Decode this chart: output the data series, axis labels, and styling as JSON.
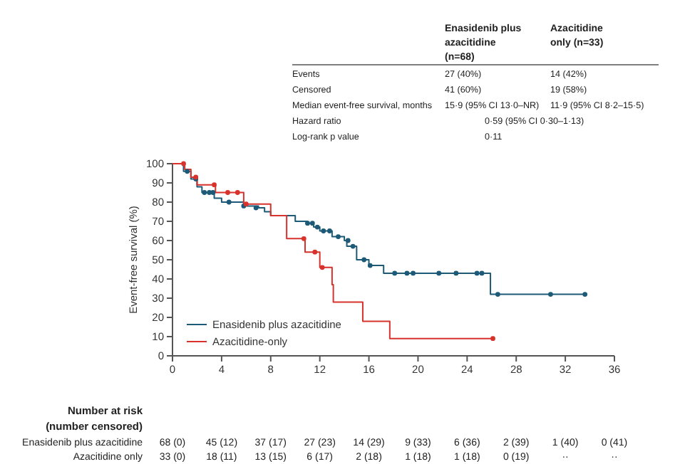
{
  "chart_data": [
    {
      "type": "other",
      "annotations": [
        "Enasidenib plus azacitidine (n=68)",
        "Azacitidine only (n=33)",
        "Events",
        "27 (40%)",
        "14 (42%)",
        "Censored",
        "41 (60%)",
        "19 (58%)",
        "Median event-free survival, months",
        "15·9 (95% CI 13·0–NR)",
        "11·9 (95% CI 8·2–15·5)",
        "Hazard ratio",
        "0·59 (95% CI 0·30–1·13)",
        "Log-rank p value",
        "0·11"
      ]
    },
    {
      "type": "step",
      "ylabel": "Event-free survival (%)",
      "xlim": [
        0,
        36
      ],
      "xticks": [
        0,
        4,
        8,
        12,
        16,
        20,
        24,
        28,
        32,
        36
      ],
      "ylim": [
        0,
        100
      ],
      "yticks": [
        0,
        10,
        20,
        30,
        40,
        50,
        60,
        70,
        80,
        90,
        100
      ],
      "grid": false,
      "legend": "bottom left",
      "series": [
        {
          "name": "Enasidenib plus azacitidine",
          "color": "#1d5a78",
          "x": [
            0,
            0.9,
            1.5,
            2,
            2.4,
            3.4,
            4,
            5.8,
            7,
            7.5,
            8,
            10,
            11,
            11.5,
            12,
            13,
            14,
            14.2,
            15,
            16,
            17.2,
            25.9,
            33.6
          ],
          "values": [
            100,
            96,
            92,
            88,
            85,
            82,
            80,
            78,
            77,
            75,
            73,
            70,
            69,
            67,
            65,
            62,
            60,
            57,
            50,
            47,
            43,
            32,
            32
          ]
        },
        {
          "name": "Azacitidine-only",
          "color": "#d8322c",
          "x": [
            0,
            1,
            1.5,
            2,
            3.5,
            5.8,
            8,
            9.3,
            10.8,
            12,
            13,
            13.1,
            15.5,
            17.7,
            26.1
          ],
          "values": [
            100,
            97,
            93,
            89,
            85,
            79,
            73,
            61,
            54,
            46,
            37,
            28,
            18,
            9,
            9
          ]
        },
        {
          "type": "scatter",
          "marker": "circle",
          "color": "#1d5a78",
          "x": [
            1.2,
            1.9,
            2.6,
            3.0,
            3.3,
            4.6,
            5.8,
            6.8,
            11.0,
            11.4,
            11.8,
            12.3,
            12.8,
            13.5,
            14.3,
            14.7,
            15.6,
            16.1,
            18.1,
            19.1,
            19.6,
            21.7,
            23.1,
            24.8,
            25.2,
            26.5,
            30.8,
            33.6
          ],
          "values": [
            96,
            92,
            85,
            85,
            85,
            80,
            78,
            77,
            69,
            69,
            67,
            65,
            65,
            62,
            60,
            57,
            50,
            47,
            43,
            43,
            43,
            43,
            43,
            43,
            43,
            32,
            32,
            32
          ]
        },
        {
          "type": "scatter",
          "marker": "circle",
          "color": "#d8322c",
          "x": [
            0.9,
            1.9,
            3.4,
            4.5,
            5.3,
            6.0,
            10.7,
            11.6,
            12.2,
            26.1
          ],
          "values": [
            100,
            93,
            89,
            85,
            85,
            79,
            61,
            54,
            46,
            9
          ]
        }
      ],
      "annotations": [
        "Number at risk",
        "(number censored)",
        "Enasidenib plus azacitidine",
        "68 (0)",
        "45 (12)",
        "37 (17)",
        "27 (23)",
        "14 (29)",
        "9 (33)",
        "6 (36)",
        "2 (39)",
        "1 (40)",
        "0 (41)",
        "Azacitidine only",
        "33 (0)",
        "18 (11)",
        "13 (15)",
        "6 (17)",
        "2 (18)",
        "1 (18)",
        "1 (18)",
        "0 (19)",
        "··",
        "··"
      ]
    }
  ]
}
